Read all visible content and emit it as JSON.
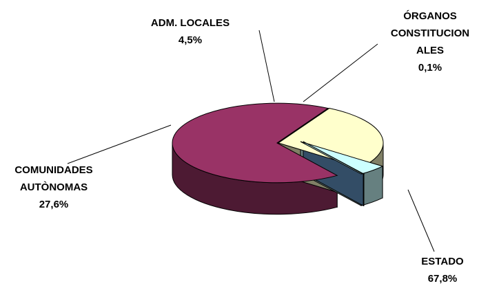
{
  "chart_data": {
    "type": "pie",
    "title": "",
    "three_d": true,
    "legend": "none",
    "slices": [
      {
        "category_lines": [
          "ESTADO"
        ],
        "value_label": "67,8%",
        "value": 67.8,
        "colors": {
          "top": "#993366",
          "side": "#4d1a33"
        }
      },
      {
        "category_lines": [
          "COMUNIDADES",
          "AUTÒNOMAS"
        ],
        "value_label": "27,6%",
        "value": 27.6,
        "colors": {
          "top": "#ffffcc",
          "side": "#808066"
        }
      },
      {
        "category_lines": [
          "ADM. LOCALES"
        ],
        "value_label": "4,5%",
        "value": 4.5,
        "colors": {
          "top": "#ccffff",
          "side": "#668080"
        }
      },
      {
        "category_lines": [
          "ÓRGANOS",
          "CONSTITUCION",
          "ALES"
        ],
        "value_label": "0,1%",
        "value": 0.1,
        "colors": {
          "top": "#6699cc",
          "side": "#334d66"
        }
      }
    ]
  }
}
